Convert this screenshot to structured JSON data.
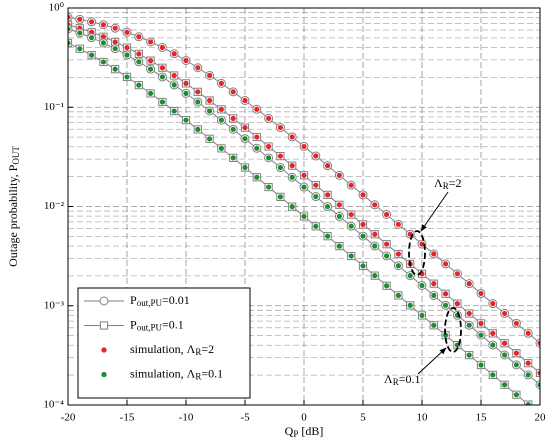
{
  "chart_data": {
    "type": "line",
    "log_y": true,
    "grid": true,
    "minor_grid": true,
    "xlabel": [
      "Q",
      "P",
      " [dB]"
    ],
    "ylabel": [
      "Outage probability, P",
      "OUT"
    ],
    "xlim": [
      -20,
      20
    ],
    "xticks": [
      -20,
      -15,
      -10,
      -5,
      0,
      5,
      10,
      15,
      20
    ],
    "ylim": [
      0.0001,
      1
    ],
    "yticks": [
      {
        "value": 0.0001,
        "label": "10⁻⁴"
      },
      {
        "value": 0.001,
        "label": "10⁻³"
      },
      {
        "value": 0.01,
        "label": "10⁻²"
      },
      {
        "value": 0.1,
        "label": "10⁻¹"
      },
      {
        "value": 1,
        "label": "10⁰"
      }
    ],
    "x": [
      -20,
      -19,
      -18,
      -17,
      -16,
      -15,
      -14,
      -13,
      -12,
      -11,
      -10,
      -9,
      -8,
      -7,
      -6,
      -5,
      -4,
      -3,
      -2,
      -1,
      0,
      1,
      2,
      3,
      4,
      5,
      6,
      7,
      8,
      9,
      10,
      11,
      12,
      13,
      14,
      15,
      16,
      17,
      18,
      19,
      20
    ],
    "series": [
      {
        "marker": "circle",
        "line_color": "#808080",
        "dot_color": "#e8232a",
        "values": [
          0.808,
          0.769,
          0.726,
          0.678,
          0.626,
          0.57,
          0.513,
          0.456,
          0.4,
          0.346,
          0.296,
          0.25,
          0.209,
          0.174,
          0.143,
          0.117,
          0.0954,
          0.0773,
          0.0624,
          0.0502,
          0.0403,
          0.0323,
          0.0258,
          0.0206,
          0.0164,
          0.0131,
          0.0104,
          0.00831,
          0.00661,
          0.00526,
          0.00418,
          0.00333,
          0.00264,
          0.0021,
          0.00167,
          0.00133,
          0.00105,
          0.000837,
          0.000665,
          0.000528,
          0.00042
        ]
      },
      {
        "marker": "square",
        "line_color": "#808080",
        "dot_color": "#e8232a",
        "values": [
          0.677,
          0.625,
          0.57,
          0.513,
          0.455,
          0.399,
          0.345,
          0.295,
          0.25,
          0.209,
          0.174,
          0.143,
          0.117,
          0.0952,
          0.0772,
          0.0623,
          0.0501,
          0.0402,
          0.0322,
          0.0258,
          0.0206,
          0.0164,
          0.0131,
          0.0104,
          0.00829,
          0.0066,
          0.00525,
          0.00417,
          0.00332,
          0.00264,
          0.0021,
          0.00167,
          0.00132,
          0.00105,
          0.000835,
          0.000664,
          0.000527,
          0.000419,
          0.000333,
          0.000264,
          0.00021
        ]
      },
      {
        "marker": "circle",
        "line_color": "#808080",
        "dot_color": "#1e8c32",
        "values": [
          0.615,
          0.56,
          0.502,
          0.445,
          0.389,
          0.336,
          0.287,
          0.242,
          0.202,
          0.168,
          0.138,
          0.113,
          0.0917,
          0.0742,
          0.0599,
          0.0482,
          0.0386,
          0.0309,
          0.0247,
          0.0197,
          0.0157,
          0.0126,
          0.00999,
          0.00796,
          0.00633,
          0.00503,
          0.004,
          0.00318,
          0.00253,
          0.00201,
          0.0016,
          0.00127,
          0.00101,
          0.000801,
          0.000637,
          0.000506,
          0.000402,
          0.000319,
          0.000254,
          0.000201,
          0.00016
        ]
      },
      {
        "marker": "square",
        "line_color": "#808080",
        "dot_color": "#1e8c32",
        "values": [
          0.444,
          0.389,
          0.335,
          0.286,
          0.242,
          0.202,
          0.167,
          0.138,
          0.113,
          0.0915,
          0.0741,
          0.0598,
          0.0481,
          0.0385,
          0.0309,
          0.0247,
          0.0197,
          0.0157,
          0.0125,
          0.00997,
          0.00794,
          0.00631,
          0.00502,
          0.00399,
          0.00317,
          0.00252,
          0.00201,
          0.00159,
          0.00127,
          0.00101,
          0.000799,
          0.000635,
          0.000505,
          0.000401,
          0.000318,
          0.000253,
          0.000201,
          0.00016,
          0.000127,
          0.000101,
          null
        ]
      }
    ],
    "legend": [
      {
        "label": [
          "P",
          "out,PU",
          "=0.01"
        ],
        "marker": "circle",
        "line": true,
        "color": "#808080"
      },
      {
        "label": [
          "P",
          "out,PU",
          "=0.1"
        ],
        "marker": "square",
        "line": true,
        "color": "#808080"
      },
      {
        "label": [
          "simulation, Λ",
          "R",
          "=2"
        ],
        "marker": "dot",
        "line": false,
        "color": "#e8232a"
      },
      {
        "label": [
          "simulation, Λ",
          "R",
          "=0.1"
        ],
        "marker": "dot",
        "line": false,
        "color": "#1e8c32"
      }
    ],
    "annotations": [
      [
        "Λ",
        "R",
        "=2"
      ],
      [
        "Λ",
        "R",
        "=0.1"
      ]
    ]
  }
}
